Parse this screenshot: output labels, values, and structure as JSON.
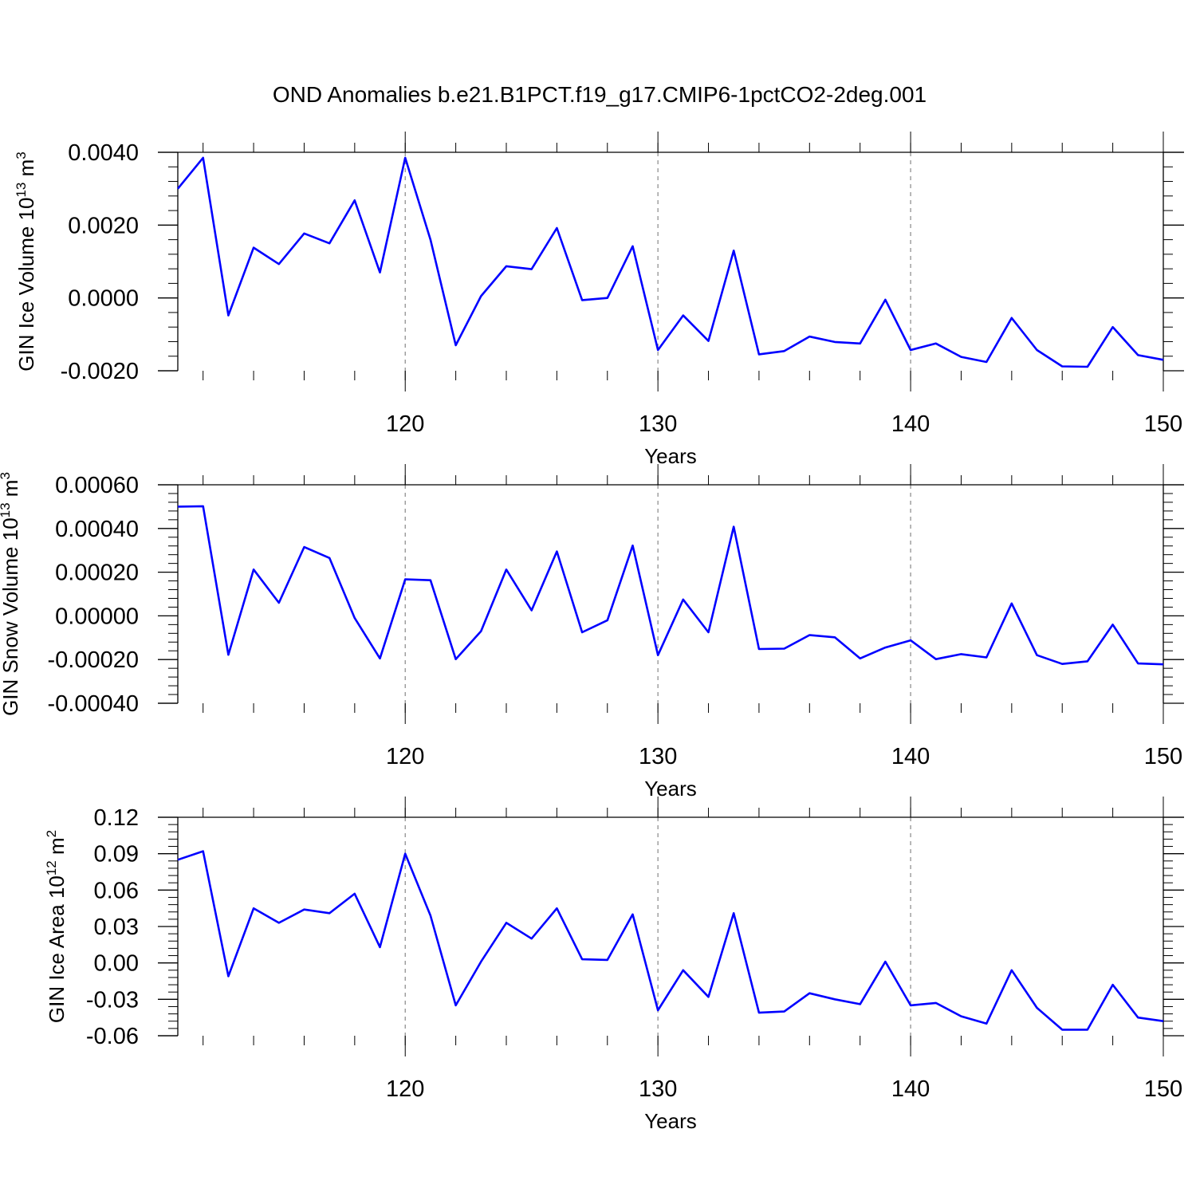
{
  "title": "OND Anomalies b.e21.B1PCT.f19_g17.CMIP6-1pctCO2-2deg.001",
  "colors": {
    "line": "#0000ff",
    "axis": "#000000",
    "grid": "#888888"
  },
  "chart_data": [
    {
      "type": "line",
      "xlabel": "Years",
      "ylabel_main": "GIN Ice Volume 10",
      "ylabel_exp": "13",
      "ylabel_unit": " m",
      "ylabel_unit_exp": "3",
      "xlim": [
        111,
        150
      ],
      "ylim": [
        -0.002,
        0.004
      ],
      "xticks": [
        "120",
        "130",
        "140",
        "150"
      ],
      "yticks": [
        "0.0040",
        "0.0020",
        "0.0000",
        "-0.0020"
      ],
      "ytick_values": [
        0.004,
        0.002,
        0.0,
        -0.002
      ],
      "grid": "dashed vertical at 120, 130, 140",
      "x": [
        111,
        112,
        113,
        114,
        115,
        116,
        117,
        118,
        119,
        120,
        121,
        122,
        123,
        124,
        125,
        126,
        127,
        128,
        129,
        130,
        131,
        132,
        133,
        134,
        135,
        136,
        137,
        138,
        139,
        140,
        141,
        142,
        143,
        144,
        145,
        146,
        147,
        148,
        149,
        150
      ],
      "values": [
        0.003,
        0.00385,
        -0.00048,
        0.00138,
        0.00093,
        0.00177,
        0.0015,
        0.00268,
        0.0007,
        0.00385,
        0.0016,
        -0.0013,
        5e-05,
        0.00087,
        0.00079,
        0.00192,
        -6e-05,
        0.0,
        0.00142,
        -0.00143,
        -0.00048,
        -0.00118,
        0.0013,
        -0.00155,
        -0.00146,
        -0.00106,
        -0.00121,
        -0.00125,
        -5e-05,
        -0.00143,
        -0.00125,
        -0.00162,
        -0.00176,
        -0.00055,
        -0.00143,
        -0.00188,
        -0.00189,
        -0.0008,
        -0.00157,
        -0.0017
      ]
    },
    {
      "type": "line",
      "xlabel": "Years",
      "ylabel_main": "GIN Snow Volume 10",
      "ylabel_exp": "13",
      "ylabel_unit": " m",
      "ylabel_unit_exp": "3",
      "xlim": [
        111,
        150
      ],
      "ylim": [
        -0.0004,
        0.0006
      ],
      "xticks": [
        "120",
        "130",
        "140",
        "150"
      ],
      "yticks": [
        "0.00060",
        "0.00040",
        "0.00020",
        "0.00000",
        "-0.00020",
        "-0.00040"
      ],
      "ytick_values": [
        0.0006,
        0.0004,
        0.0002,
        0.0,
        -0.0002,
        -0.0004
      ],
      "grid": "dashed vertical at 120, 130, 140",
      "x": [
        111,
        112,
        113,
        114,
        115,
        116,
        117,
        118,
        119,
        120,
        121,
        122,
        123,
        124,
        125,
        126,
        127,
        128,
        129,
        130,
        131,
        132,
        133,
        134,
        135,
        136,
        137,
        138,
        139,
        140,
        141,
        142,
        143,
        144,
        145,
        146,
        147,
        148,
        149,
        150
      ],
      "values": [
        0.0005,
        0.000502,
        -0.000178,
        0.000212,
        6e-05,
        0.000315,
        0.000265,
        -1e-05,
        -0.000195,
        0.000167,
        0.000163,
        -0.000198,
        -7e-05,
        0.000212,
        2.5e-05,
        0.000295,
        -7.5e-05,
        -2e-05,
        0.000322,
        -0.00018,
        7.5e-05,
        -7.5e-05,
        0.000408,
        -0.000152,
        -0.00015,
        -8.8e-05,
        -9.8e-05,
        -0.000195,
        -0.000145,
        -0.000112,
        -0.000198,
        -0.000175,
        -0.00019,
        5.7e-05,
        -0.00018,
        -0.00022,
        -0.000208,
        -4e-05,
        -0.000218,
        -0.000222
      ]
    },
    {
      "type": "line",
      "xlabel": "Years",
      "ylabel_main": "GIN Ice Area 10",
      "ylabel_exp": "12",
      "ylabel_unit": " m",
      "ylabel_unit_exp": "2",
      "xlim": [
        111,
        150
      ],
      "ylim": [
        -0.06,
        0.12
      ],
      "xticks": [
        "120",
        "130",
        "140",
        "150"
      ],
      "yticks": [
        "0.12",
        "0.09",
        "0.06",
        "0.03",
        "0.00",
        "-0.03",
        "-0.06"
      ],
      "ytick_values": [
        0.12,
        0.09,
        0.06,
        0.03,
        0.0,
        -0.03,
        -0.06
      ],
      "grid": "dashed vertical at 120, 130, 140",
      "x": [
        111,
        112,
        113,
        114,
        115,
        116,
        117,
        118,
        119,
        120,
        121,
        122,
        123,
        124,
        125,
        126,
        127,
        128,
        129,
        130,
        131,
        132,
        133,
        134,
        135,
        136,
        137,
        138,
        139,
        140,
        141,
        142,
        143,
        144,
        145,
        146,
        147,
        148,
        149,
        150
      ],
      "values": [
        0.085,
        0.092,
        -0.011,
        0.045,
        0.033,
        0.044,
        0.041,
        0.057,
        0.013,
        0.09,
        0.039,
        -0.035,
        0.001,
        0.033,
        0.02,
        0.045,
        0.003,
        0.0025,
        0.04,
        -0.039,
        -0.006,
        -0.028,
        0.041,
        -0.041,
        -0.04,
        -0.025,
        -0.03,
        -0.034,
        0.001,
        -0.035,
        -0.033,
        -0.044,
        -0.05,
        -0.006,
        -0.037,
        -0.055,
        -0.055,
        -0.018,
        -0.045,
        -0.048
      ]
    }
  ]
}
